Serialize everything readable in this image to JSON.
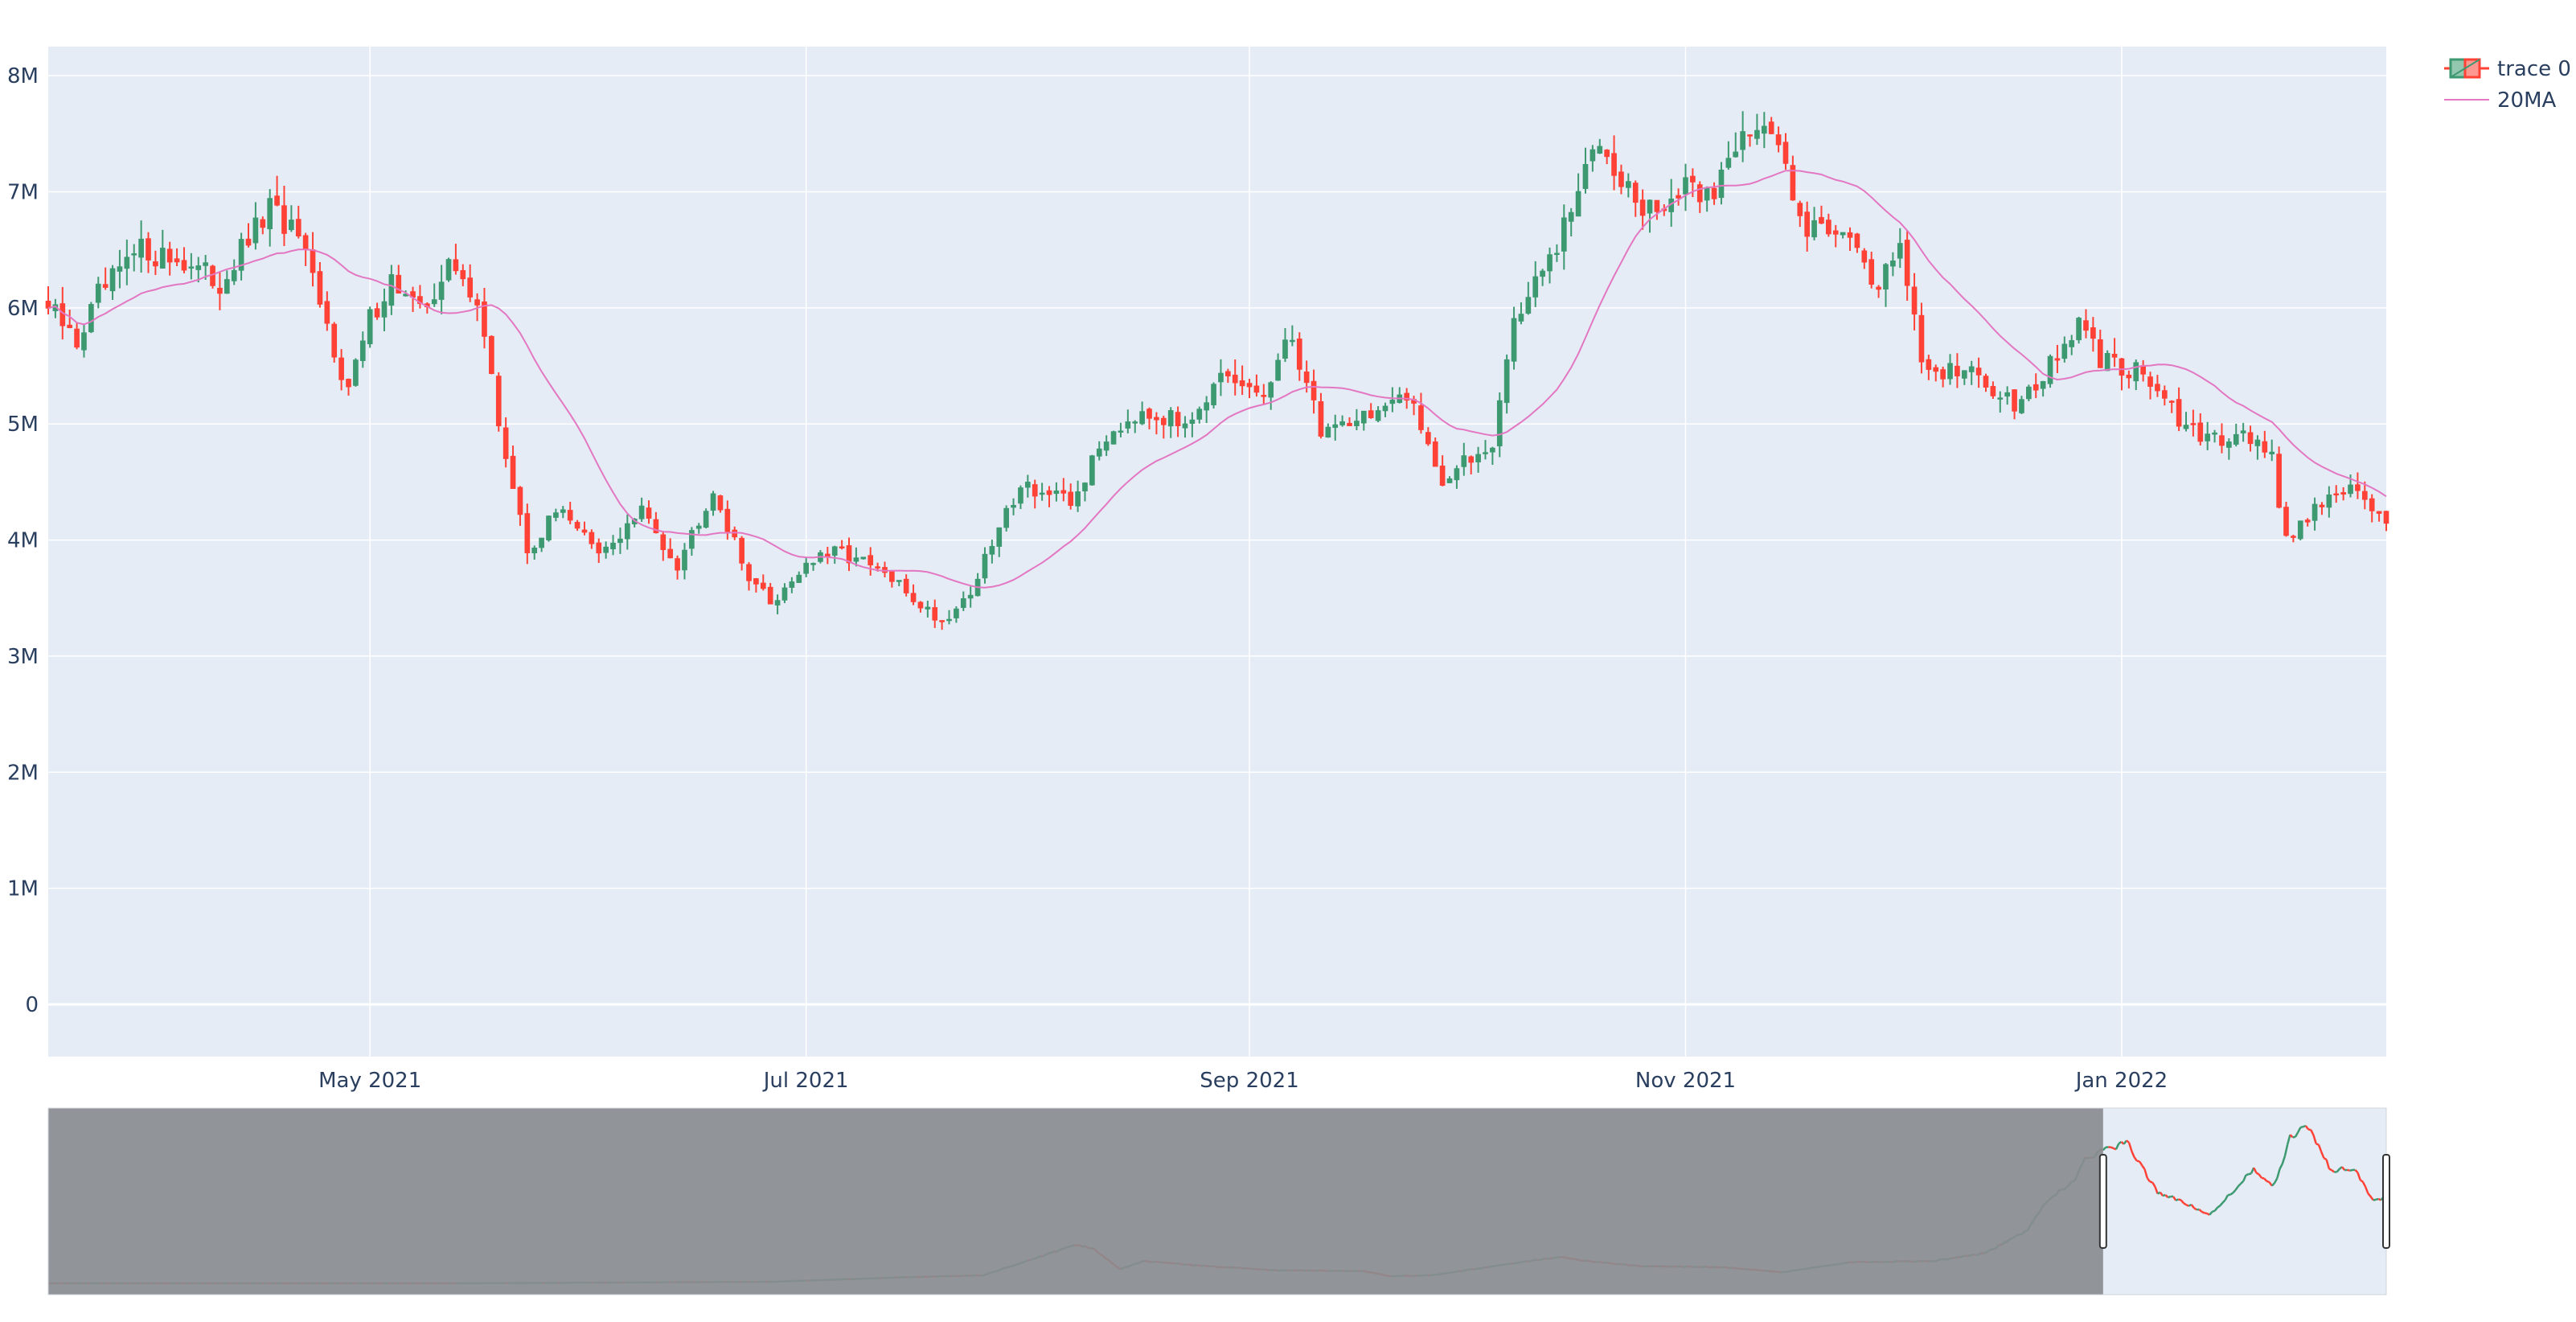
{
  "chart_data": {
    "type": "candlestick",
    "title": "",
    "xlabel": "",
    "ylabel": "",
    "x_range": [
      "2021-03-17",
      "2022-02-07"
    ],
    "ylim": [
      -450000,
      8250000
    ],
    "y_ticks": [
      0,
      1000000,
      2000000,
      3000000,
      4000000,
      5000000,
      6000000,
      7000000,
      8000000
    ],
    "y_tick_labels": [
      "0",
      "1M",
      "2M",
      "3M",
      "4M",
      "5M",
      "6M",
      "7M",
      "8M"
    ],
    "x_ticks": [
      "2021-05-01",
      "2021-07-01",
      "2021-09-01",
      "2021-11-01",
      "2022-01-01"
    ],
    "x_tick_labels": [
      "May 2021",
      "Jul 2021",
      "Sep 2021",
      "Nov 2021",
      "Jan 2022"
    ],
    "grid": true,
    "legend_position": "top-right",
    "series": [
      {
        "name": "trace 0",
        "type": "candlestick",
        "increasing_color": "#3D9970",
        "decreasing_color": "#FF4136"
      },
      {
        "name": "20MA",
        "type": "line",
        "color": "#E377C2"
      }
    ],
    "close_anchors": [
      [
        "2021-03-17",
        6000000
      ],
      [
        "2021-03-21",
        5700000
      ],
      [
        "2021-03-24",
        6100000
      ],
      [
        "2021-03-30",
        6500000
      ],
      [
        "2021-04-05",
        6400000
      ],
      [
        "2021-04-10",
        6200000
      ],
      [
        "2021-04-17",
        6850000
      ],
      [
        "2021-04-21",
        6600000
      ],
      [
        "2021-04-24",
        6000000
      ],
      [
        "2021-04-28",
        5300000
      ],
      [
        "2021-05-01",
        5900000
      ],
      [
        "2021-05-04",
        6250000
      ],
      [
        "2021-05-08",
        5950000
      ],
      [
        "2021-05-12",
        6350000
      ],
      [
        "2021-05-16",
        6100000
      ],
      [
        "2021-05-19",
        5000000
      ],
      [
        "2021-05-23",
        3900000
      ],
      [
        "2021-05-28",
        4300000
      ],
      [
        "2021-06-02",
        3850000
      ],
      [
        "2021-06-08",
        4250000
      ],
      [
        "2021-06-13",
        3800000
      ],
      [
        "2021-06-18",
        4450000
      ],
      [
        "2021-06-22",
        3800000
      ],
      [
        "2021-06-26",
        3450000
      ],
      [
        "2021-07-01",
        3800000
      ],
      [
        "2021-07-06",
        3900000
      ],
      [
        "2021-07-12",
        3700000
      ],
      [
        "2021-07-20",
        3300000
      ],
      [
        "2021-07-24",
        3550000
      ],
      [
        "2021-07-31",
        4500000
      ],
      [
        "2021-08-07",
        4300000
      ],
      [
        "2021-08-12",
        4900000
      ],
      [
        "2021-08-17",
        5150000
      ],
      [
        "2021-08-22",
        5000000
      ],
      [
        "2021-08-28",
        5350000
      ],
      [
        "2021-09-03",
        5250000
      ],
      [
        "2021-09-07",
        5750000
      ],
      [
        "2021-09-11",
        4950000
      ],
      [
        "2021-09-18",
        5100000
      ],
      [
        "2021-09-24",
        5200000
      ],
      [
        "2021-09-28",
        4500000
      ],
      [
        "2021-10-05",
        4850000
      ],
      [
        "2021-10-08",
        5900000
      ],
      [
        "2021-10-14",
        6500000
      ],
      [
        "2021-10-20",
        7500000
      ],
      [
        "2021-10-26",
        6800000
      ],
      [
        "2021-11-01",
        7000000
      ],
      [
        "2021-11-05",
        7000000
      ],
      [
        "2021-11-09",
        7600000
      ],
      [
        "2021-11-14",
        7400000
      ],
      [
        "2021-11-18",
        6700000
      ],
      [
        "2021-11-24",
        6700000
      ],
      [
        "2021-11-27",
        6100000
      ],
      [
        "2021-12-01",
        6600000
      ],
      [
        "2021-12-04",
        5500000
      ],
      [
        "2021-12-10",
        5450000
      ],
      [
        "2021-12-17",
        5200000
      ],
      [
        "2021-12-21",
        5400000
      ],
      [
        "2021-12-26",
        5850000
      ],
      [
        "2021-12-29",
        5550000
      ],
      [
        "2022-01-04",
        5450000
      ],
      [
        "2022-01-08",
        5100000
      ],
      [
        "2022-01-12",
        4850000
      ],
      [
        "2022-01-18",
        4950000
      ],
      [
        "2022-01-22",
        4700000
      ],
      [
        "2022-01-24",
        4000000
      ],
      [
        "2022-01-28",
        4300000
      ],
      [
        "2022-02-02",
        4450000
      ],
      [
        "2022-02-04",
        4300000
      ],
      [
        "2022-02-07",
        4200000
      ]
    ],
    "rangeslider": {
      "x_range": [
        "2014-09-17",
        "2022-02-07"
      ],
      "selected_range": [
        "2021-03-17",
        "2022-02-07"
      ],
      "price_anchors": [
        [
          "2014-09-17",
          5000
        ],
        [
          "2016-01-01",
          5000
        ],
        [
          "2017-01-01",
          80000
        ],
        [
          "2017-06-01",
          300000
        ],
        [
          "2017-09-01",
          400000
        ],
        [
          "2017-12-17",
          1900000
        ],
        [
          "2018-01-06",
          1700000
        ],
        [
          "2018-02-06",
          700000
        ],
        [
          "2018-03-05",
          1100000
        ],
        [
          "2018-05-01",
          900000
        ],
        [
          "2018-08-01",
          650000
        ],
        [
          "2018-11-15",
          600000
        ],
        [
          "2018-12-15",
          350000
        ],
        [
          "2019-02-01",
          400000
        ],
        [
          "2019-06-26",
          1300000
        ],
        [
          "2019-08-01",
          1100000
        ],
        [
          "2019-10-01",
          850000
        ],
        [
          "2020-01-01",
          800000
        ],
        [
          "2020-03-12",
          550000
        ],
        [
          "2020-06-01",
          1050000
        ],
        [
          "2020-09-01",
          1100000
        ],
        [
          "2020-11-01",
          1500000
        ],
        [
          "2020-12-20",
          2600000
        ],
        [
          "2021-01-08",
          4000000
        ],
        [
          "2021-02-10",
          5000000
        ],
        [
          "2021-02-22",
          6000000
        ],
        [
          "2021-03-14",
          6500000
        ],
        [
          "2021-04-14",
          6900000
        ],
        [
          "2021-05-19",
          4500000
        ],
        [
          "2021-07-20",
          3400000
        ],
        [
          "2021-09-06",
          5600000
        ],
        [
          "2021-09-30",
          4700000
        ],
        [
          "2021-10-20",
          7300000
        ],
        [
          "2021-11-10",
          7700000
        ],
        [
          "2021-12-04",
          5600000
        ],
        [
          "2022-01-01",
          5650000
        ],
        [
          "2022-01-24",
          4000000
        ],
        [
          "2022-02-07",
          4300000
        ]
      ]
    }
  },
  "legend": {
    "items": [
      {
        "label": "trace 0"
      },
      {
        "label": "20MA"
      }
    ]
  },
  "colors": {
    "plot_bg": "#E5ECF6",
    "grid": "#FFFFFF",
    "increasing": "#3D9970",
    "decreasing": "#FF4136",
    "ma_line": "#E377C2",
    "slider_mask": "#8A8C90",
    "text": "#2a3f5f"
  }
}
